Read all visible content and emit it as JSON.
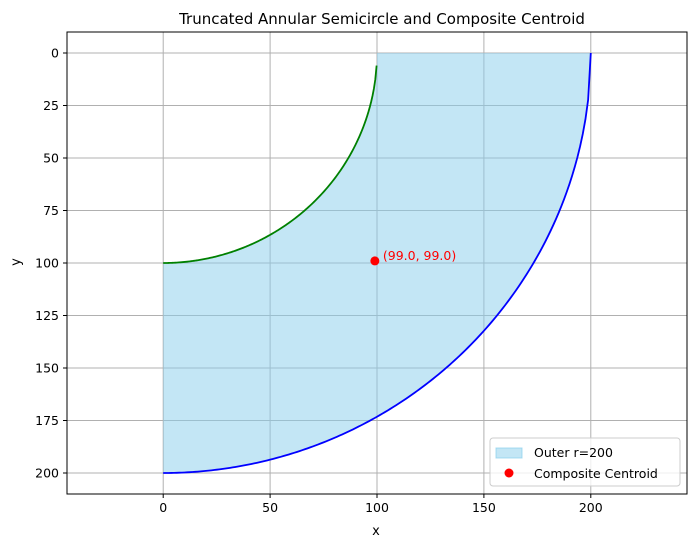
{
  "chart_data": {
    "type": "area",
    "title": "Truncated Annular Semicircle and Composite Centroid",
    "xlabel": "x",
    "ylabel": "y",
    "xlim": [
      -45,
      245
    ],
    "ylim": [
      210,
      -10
    ],
    "y_inverted": true,
    "grid": true,
    "legend_position": "lower-right",
    "xticks": [
      0,
      50,
      100,
      150,
      200
    ],
    "yticks": [
      0,
      25,
      50,
      75,
      100,
      125,
      150,
      175,
      200
    ],
    "fill_region": {
      "name": "Outer r=200",
      "color": "#87ceeb",
      "opacity": 0.5
    },
    "series": [
      {
        "type": "arc",
        "color": "#0000ff",
        "center": [
          0,
          0
        ],
        "radius": 200,
        "x_range": [
          0,
          200
        ]
      },
      {
        "type": "arc",
        "color": "#008000",
        "center": [
          0,
          0
        ],
        "radius": 100,
        "x_range": [
          0,
          100
        ],
        "y_end": 6
      },
      {
        "type": "point",
        "name": "Composite Centroid",
        "color": "#ff0000",
        "x": 99,
        "y": 99,
        "annotation": "(99.0, 99.0)"
      }
    ],
    "legend": [
      {
        "label": "Outer r=200",
        "kind": "patch",
        "color": "#87ceeb"
      },
      {
        "label": "Composite Centroid",
        "kind": "marker",
        "color": "#ff0000"
      }
    ]
  }
}
